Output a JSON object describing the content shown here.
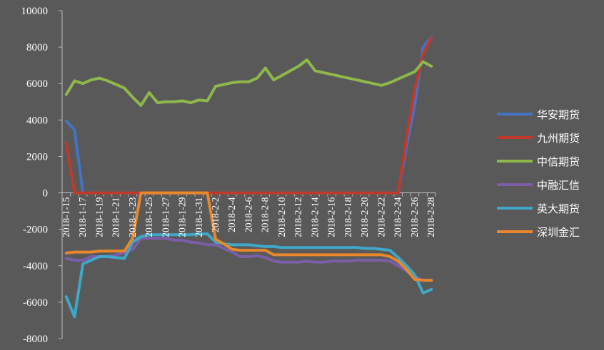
{
  "chart_data": {
    "type": "line",
    "x": [
      "2018-1-15",
      "2018-1-16",
      "2018-1-17",
      "2018-1-18",
      "2018-1-19",
      "2018-1-20",
      "2018-1-21",
      "2018-1-22",
      "2018-1-23",
      "2018-1-24",
      "2018-1-25",
      "2018-1-26",
      "2018-1-27",
      "2018-1-28",
      "2018-1-29",
      "2018-1-30",
      "2018-1-31",
      "2018-2-1",
      "2018-2-2",
      "2018-2-3",
      "2018-2-4",
      "2018-2-5",
      "2018-2-6",
      "2018-2-7",
      "2018-2-8",
      "2018-2-9",
      "2018-2-10",
      "2018-2-11",
      "2018-2-12",
      "2018-2-13",
      "2018-2-14",
      "2018-2-15",
      "2018-2-16",
      "2018-2-17",
      "2018-2-18",
      "2018-2-19",
      "2018-2-20",
      "2018-2-21",
      "2018-2-22",
      "2018-2-23",
      "2018-2-24",
      "2018-2-25",
      "2018-2-26",
      "2018-2-27",
      "2018-2-28"
    ],
    "xtick_labels": [
      "2018-1-15",
      "2018-1-17",
      "2018-1-19",
      "2018-1-21",
      "2018-1-23",
      "2018-1-25",
      "2018-1-27",
      "2018-1-29",
      "2018-1-31",
      "2018-2-2",
      "2018-2-4",
      "2018-2-6",
      "2018-2-8",
      "2018-2-10",
      "2018-2-12",
      "2018-2-14",
      "2018-2-16",
      "2018-2-18",
      "2018-2-20",
      "2018-2-22",
      "2018-2-24",
      "2018-2-26",
      "2018-2-28"
    ],
    "ylim": [
      -8000,
      10000
    ],
    "yticks": [
      10000,
      8000,
      6000,
      4000,
      2000,
      0,
      -2000,
      -4000,
      -6000,
      -8000
    ],
    "legend_position": "right",
    "grid": false,
    "series": [
      {
        "name": "华安期货",
        "color": "#4472c4",
        "values": [
          3950,
          3450,
          0,
          0,
          0,
          0,
          0,
          0,
          0,
          0,
          0,
          0,
          0,
          0,
          0,
          0,
          0,
          0,
          0,
          0,
          0,
          0,
          0,
          0,
          0,
          0,
          0,
          0,
          0,
          0,
          0,
          0,
          0,
          0,
          0,
          0,
          0,
          0,
          0,
          0,
          0,
          2500,
          4800,
          8000,
          8550
        ]
      },
      {
        "name": "九州期货",
        "color": "#c0392b",
        "values": [
          2750,
          0,
          0,
          0,
          0,
          0,
          0,
          0,
          0,
          0,
          0,
          0,
          0,
          0,
          0,
          0,
          0,
          0,
          0,
          0,
          0,
          0,
          0,
          0,
          0,
          0,
          0,
          0,
          0,
          0,
          0,
          0,
          0,
          0,
          0,
          0,
          0,
          0,
          0,
          0,
          0,
          3000,
          5700,
          7600,
          8500
        ]
      },
      {
        "name": "中信期货",
        "color": "#8fb84a",
        "values": [
          5400,
          6150,
          6000,
          6200,
          6300,
          6150,
          5950,
          5750,
          5250,
          4800,
          5500,
          4950,
          5000,
          5000,
          5050,
          4950,
          5100,
          5050,
          5850,
          5950,
          6050,
          6100,
          6100,
          6300,
          6850,
          6200,
          6450,
          6700,
          6950,
          7300,
          6700,
          6600,
          6500,
          6400,
          6300,
          6200,
          6100,
          6000,
          5900,
          6050,
          6250,
          6450,
          6650,
          7200,
          6950
        ]
      },
      {
        "name": "中融汇信",
        "color": "#7b5ea7",
        "values": [
          -3600,
          -3700,
          -3700,
          -3500,
          -3500,
          -3500,
          -3400,
          -3300,
          -3100,
          -2500,
          -2500,
          -2500,
          -2500,
          -2600,
          -2600,
          -2700,
          -2750,
          -2850,
          -2850,
          -3050,
          -3250,
          -3500,
          -3500,
          -3450,
          -3550,
          -3750,
          -3800,
          -3800,
          -3800,
          -3750,
          -3800,
          -3800,
          -3750,
          -3750,
          -3750,
          -3700,
          -3700,
          -3700,
          -3700,
          -3750,
          -4000,
          -4300,
          -4600,
          -4800,
          -4800
        ]
      },
      {
        "name": "英大期货",
        "color": "#3fa7c7",
        "values": [
          -5700,
          -6800,
          -3900,
          -3700,
          -3500,
          -3500,
          -3550,
          -3600,
          -2700,
          -2400,
          -2300,
          -2300,
          -2300,
          -2300,
          -2300,
          -2300,
          -2250,
          -2250,
          -2700,
          -2800,
          -2850,
          -2850,
          -2850,
          -2900,
          -2950,
          -2950,
          -3000,
          -3000,
          -3000,
          -3000,
          -3000,
          -3000,
          -3000,
          -3000,
          -3000,
          -3000,
          -3050,
          -3050,
          -3100,
          -3150,
          -3550,
          -4000,
          -4500,
          -5500,
          -5300
        ]
      },
      {
        "name": "深圳金汇",
        "color": "#e8872b",
        "values": [
          -3300,
          -3250,
          -3250,
          -3250,
          -3200,
          -3200,
          -3200,
          -3200,
          -2500,
          0,
          0,
          0,
          0,
          0,
          0,
          0,
          0,
          0,
          -2550,
          -2800,
          -3100,
          -3150,
          -3150,
          -3150,
          -3150,
          -3400,
          -3400,
          -3400,
          -3400,
          -3400,
          -3400,
          -3400,
          -3400,
          -3400,
          -3400,
          -3400,
          -3400,
          -3400,
          -3400,
          -3500,
          -3750,
          -4200,
          -4750,
          -4800,
          -4800
        ]
      }
    ]
  }
}
